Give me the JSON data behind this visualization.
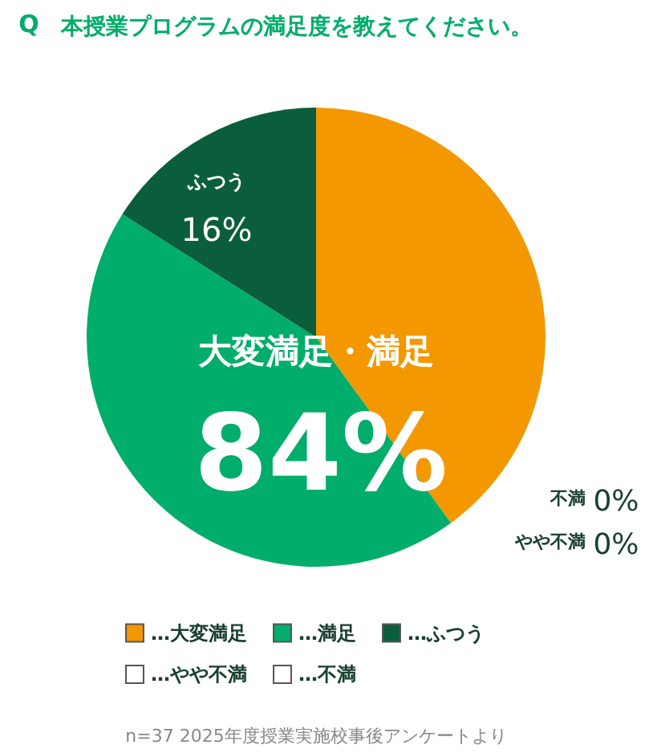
{
  "chart_data": {
    "type": "pie",
    "title": "本授業プログラムの満足度を教えてください。",
    "categories": [
      "…大変満足",
      "…満足",
      "…ふつう",
      "…やや不満",
      "…不満"
    ],
    "values": [
      40,
      44,
      16,
      0,
      0
    ],
    "colors": [
      "#f39800",
      "#00ad6a",
      "#0b5e3c",
      "#ffffff",
      "#ffffff"
    ],
    "legend": "bottom",
    "annotations": [
      "Q",
      "大変満足・満足",
      "84%",
      "ふつう",
      "16%",
      "不満",
      "0%",
      "やや不満",
      "0%",
      "n=37 2025年度授業実施校事後アンケートより"
    ]
  }
}
